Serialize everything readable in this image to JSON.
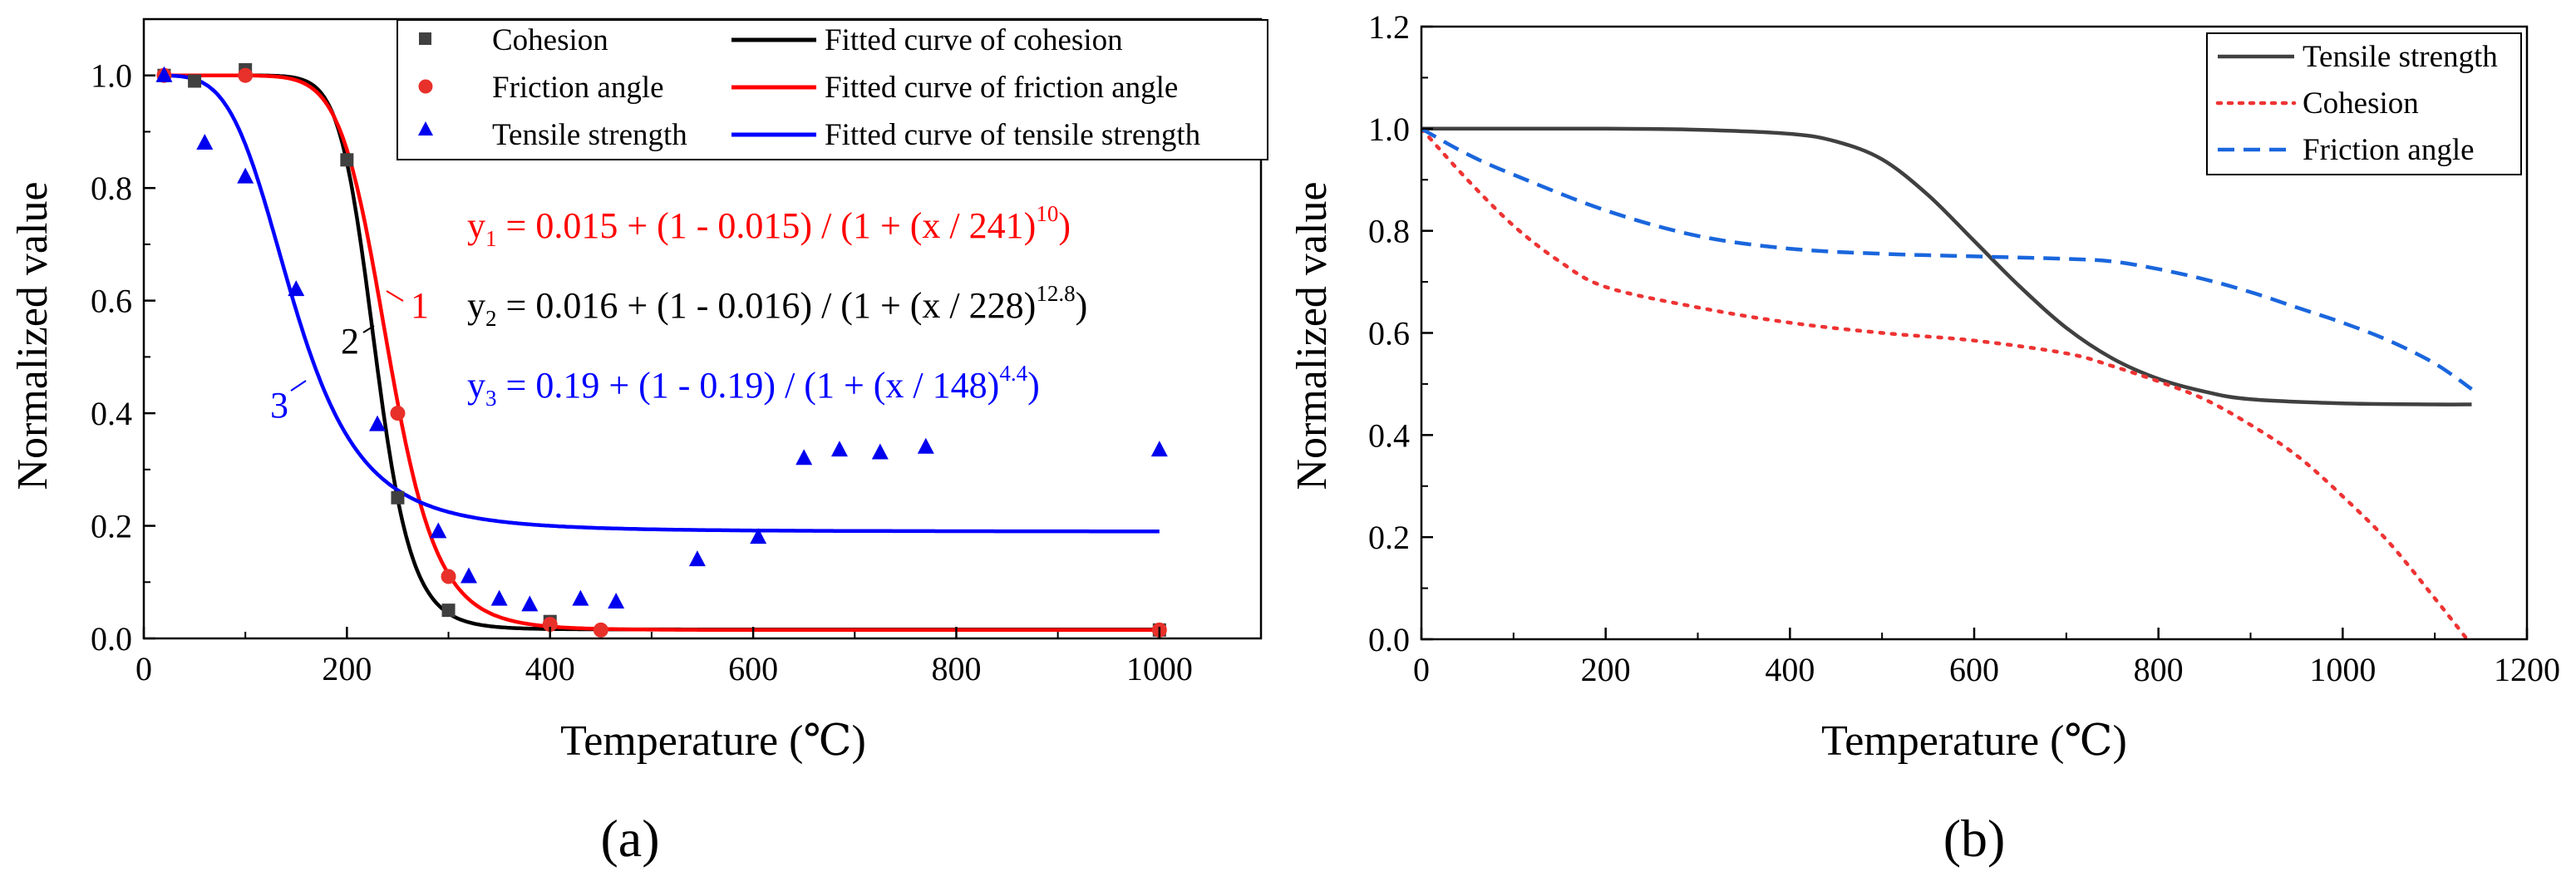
{
  "chart_data": [
    {
      "id": "a",
      "type": "scatter",
      "panel_label": "(a)",
      "xlabel": "Temperature (℃)",
      "ylabel": "Normalized value",
      "xlim": [
        0,
        1100
      ],
      "ylim": [
        0,
        1.1
      ],
      "xticks": [
        0,
        200,
        400,
        600,
        800,
        1000
      ],
      "yticks": [
        0.0,
        0.2,
        0.4,
        0.6,
        0.8,
        1.0
      ],
      "grid": false,
      "legend": "top",
      "series": [
        {
          "name": "Cohesion",
          "kind": "markers",
          "marker": "square",
          "color": "#404040",
          "x": [
            20,
            50,
            100,
            200,
            250,
            300,
            400,
            1000
          ],
          "y": [
            1.0,
            0.99,
            1.01,
            0.85,
            0.25,
            0.05,
            0.03,
            0.015
          ]
        },
        {
          "name": "Friction angle",
          "kind": "markers",
          "marker": "circle",
          "color": "#e8302a",
          "x": [
            20,
            100,
            250,
            300,
            400,
            450,
            1000
          ],
          "y": [
            1.0,
            1.0,
            0.4,
            0.11,
            0.025,
            0.015,
            0.015
          ]
        },
        {
          "name": "Tensile strength",
          "kind": "markers",
          "marker": "triangle",
          "color": "#0000ee",
          "x": [
            20,
            60,
            100,
            150,
            230,
            290,
            320,
            350,
            380,
            430,
            465,
            545,
            605,
            650,
            685,
            725,
            770,
            1000
          ],
          "y": [
            1.0,
            0.88,
            0.82,
            0.62,
            0.38,
            0.19,
            0.11,
            0.07,
            0.06,
            0.07,
            0.065,
            0.14,
            0.18,
            0.32,
            0.335,
            0.33,
            0.34,
            0.335
          ]
        },
        {
          "name": "Fitted curve of cohesion",
          "kind": "curve",
          "color": "#000000",
          "params": {
            "a": 0.016,
            "x0": 228,
            "p": 12.8
          },
          "x_range": [
            20,
            1000
          ]
        },
        {
          "name": "Fitted curve of friction angle",
          "kind": "curve",
          "color": "#ff0000",
          "params": {
            "a": 0.015,
            "x0": 241,
            "p": 10
          },
          "x_range": [
            20,
            1000
          ]
        },
        {
          "name": "Fitted curve of tensile strength",
          "kind": "curve",
          "color": "#0000ff",
          "params": {
            "a": 0.19,
            "x0": 148,
            "p": 4.4
          },
          "x_range": [
            20,
            1000
          ]
        }
      ],
      "annotations": {
        "equations": [
          {
            "color": "#ff0000",
            "y": "y",
            "sub": "1",
            "body": " = 0.015 + (1 - 0.015) / (1 + (x / 241)",
            "exp": "10",
            "tail": ")"
          },
          {
            "color": "#000000",
            "y": "y",
            "sub": "2",
            "body": " = 0.016 + (1 - 0.016) / (1 + (x / 228)",
            "exp": "12.8",
            "tail": ")"
          },
          {
            "color": "#0000ff",
            "y": "y",
            "sub": "3",
            "body": " = 0.19 + (1 - 0.19) / (1 + (x / 148)",
            "exp": "4.4",
            "tail": ")"
          }
        ],
        "curve_labels": [
          {
            "text": "1",
            "color": "#ff0000",
            "x": 268,
            "y": 0.62
          },
          {
            "text": "2",
            "color": "#000000",
            "x": 205,
            "y": 0.53
          },
          {
            "text": "3",
            "color": "#0000ff",
            "x": 137,
            "y": 0.42
          }
        ]
      }
    },
    {
      "id": "b",
      "type": "line",
      "panel_label": "(b)",
      "xlabel": "Temperature (℃)",
      "ylabel": "Normalized value",
      "xlim": [
        0,
        1200
      ],
      "ylim": [
        0,
        1.2
      ],
      "xticks": [
        0,
        200,
        400,
        600,
        800,
        1000,
        1200
      ],
      "yticks": [
        0.0,
        0.2,
        0.4,
        0.6,
        0.8,
        1.0,
        1.2
      ],
      "grid": false,
      "legend": "top-right",
      "series": [
        {
          "name": "Tensile strength",
          "style": "solid",
          "color": "#404040",
          "x": [
            0,
            100,
            200,
            300,
            400,
            450,
            500,
            550,
            600,
            650,
            700,
            750,
            800,
            850,
            900,
            1000,
            1100,
            1140
          ],
          "y": [
            1.0,
            1.0,
            1.0,
            0.998,
            0.99,
            0.975,
            0.94,
            0.87,
            0.78,
            0.69,
            0.61,
            0.55,
            0.51,
            0.485,
            0.47,
            0.462,
            0.46,
            0.46
          ]
        },
        {
          "name": "Cohesion",
          "style": "dotted",
          "color": "#ee3333",
          "x": [
            0,
            50,
            100,
            150,
            200,
            300,
            400,
            500,
            600,
            700,
            750,
            800,
            850,
            900,
            950,
            1000,
            1050,
            1100,
            1135
          ],
          "y": [
            1.0,
            0.9,
            0.81,
            0.74,
            0.69,
            0.65,
            0.62,
            0.6,
            0.585,
            0.56,
            0.535,
            0.505,
            0.47,
            0.42,
            0.36,
            0.28,
            0.19,
            0.08,
            0.0
          ]
        },
        {
          "name": "Friction angle",
          "style": "dashed",
          "color": "#1a66dd",
          "x": [
            0,
            50,
            100,
            200,
            300,
            400,
            500,
            600,
            700,
            750,
            800,
            850,
            900,
            950,
            1000,
            1050,
            1100,
            1140
          ],
          "y": [
            1.0,
            0.95,
            0.91,
            0.84,
            0.79,
            0.765,
            0.755,
            0.75,
            0.745,
            0.74,
            0.725,
            0.705,
            0.68,
            0.65,
            0.62,
            0.585,
            0.54,
            0.49
          ]
        }
      ]
    }
  ]
}
